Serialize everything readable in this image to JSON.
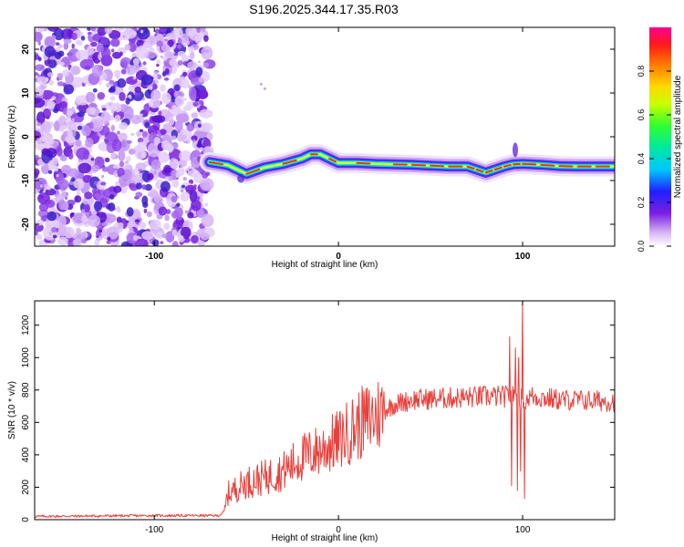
{
  "title": "S196.2025.344.17.35.R03",
  "colors": {
    "snr_line": "#e8403c",
    "axis": "#000000",
    "fill_dots": "#9a4ef0"
  },
  "chart_data": [
    {
      "type": "heatmap",
      "name": "spectrogram",
      "xlabel": "Height of straight line (km)",
      "ylabel": "Frequency (Hz)",
      "xlim": [
        -165,
        150
      ],
      "ylim": [
        -25,
        25
      ],
      "x_ticks": [
        -100,
        0,
        100
      ],
      "y_ticks": [
        -20,
        -10,
        0,
        10,
        20
      ],
      "noise_region_x": [
        -165,
        -70
      ],
      "carrier_trace": {
        "x": [
          -70,
          -60,
          -50,
          -40,
          -30,
          -20,
          -15,
          -10,
          -5,
          0,
          10,
          20,
          30,
          40,
          50,
          60,
          70,
          75,
          80,
          85,
          90,
          95,
          100,
          110,
          120,
          130,
          140,
          150
        ],
        "y": [
          -5.8,
          -6.5,
          -8.5,
          -7.0,
          -6.2,
          -5.0,
          -4.0,
          -4.0,
          -5.0,
          -6.0,
          -6.0,
          -6.2,
          -6.3,
          -6.4,
          -6.6,
          -6.8,
          -6.8,
          -7.5,
          -8.2,
          -7.5,
          -6.8,
          -6.3,
          -6.2,
          -6.4,
          -6.7,
          -6.8,
          -6.8,
          -6.8
        ]
      },
      "colorbar": {
        "label": "Normalized spectral amplitude",
        "ticks": [
          "0.0",
          "0.2",
          "0.4",
          "0.6",
          "0.8"
        ],
        "tick_values": [
          0.0,
          0.2,
          0.4,
          0.6,
          0.8
        ],
        "range": [
          0,
          1
        ]
      }
    },
    {
      "type": "line",
      "name": "snr",
      "xlabel": "Height of straight line (km)",
      "ylabel": "SNR (10 * v/v)",
      "xlim": [
        -165,
        150
      ],
      "ylim": [
        0,
        1350
      ],
      "x_ticks": [
        -100,
        0,
        100
      ],
      "y_ticks": [
        0,
        200,
        400,
        600,
        800,
        1000,
        1200
      ],
      "series": [
        {
          "name": "SNR",
          "x": [
            -165,
            -100,
            -65,
            -62,
            -60,
            -50,
            -40,
            -30,
            -20,
            -10,
            0,
            10,
            20,
            30,
            40,
            60,
            80,
            90,
            95,
            100,
            105,
            120,
            150
          ],
          "y": [
            20,
            25,
            25,
            50,
            160,
            230,
            260,
            300,
            380,
            430,
            490,
            580,
            640,
            710,
            740,
            750,
            760,
            760,
            760,
            740,
            760,
            740,
            730
          ],
          "spikes": [
            {
              "x": 93,
              "y": 1130
            },
            {
              "x": 94,
              "y": 210
            },
            {
              "x": 96,
              "y": 1060
            },
            {
              "x": 97,
              "y": 180
            },
            {
              "x": 100,
              "y": 1350
            },
            {
              "x": 101,
              "y": 130
            },
            {
              "x": 98,
              "y": 1000
            },
            {
              "x": 99,
              "y": 300
            }
          ]
        }
      ]
    }
  ]
}
